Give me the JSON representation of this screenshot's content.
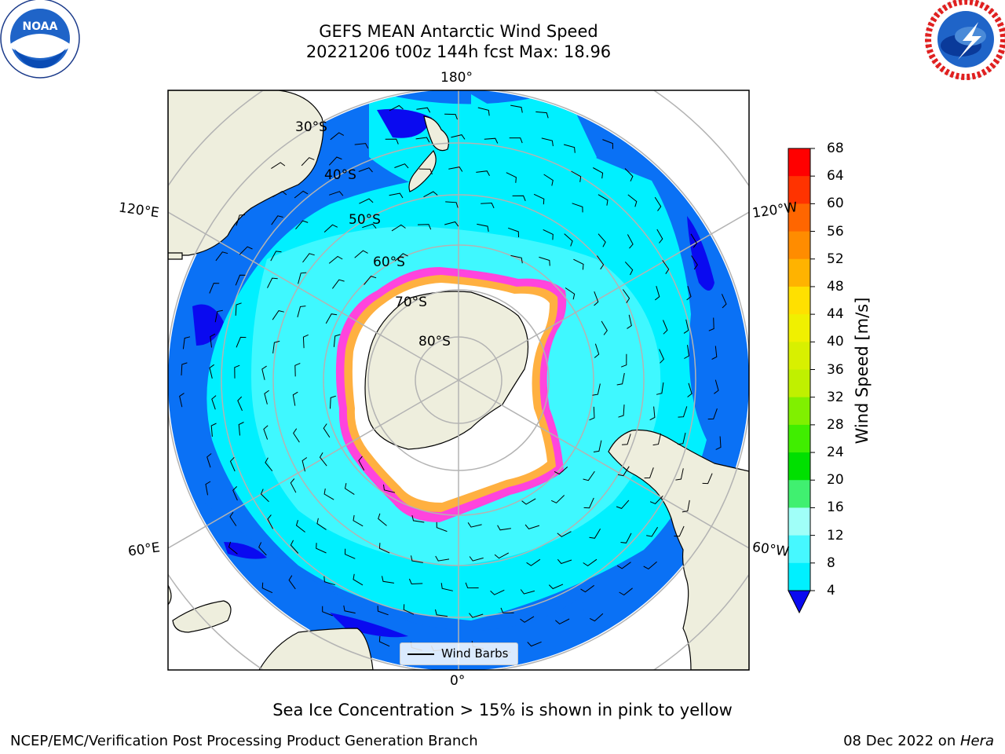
{
  "header": {
    "title": "GEFS MEAN Antarctic Wind Speed",
    "subtitle": "20221206 t00z 144h fcst   Max: 18.96",
    "left_logo": {
      "icon": "noaa-logo-icon",
      "text": "NOAA"
    },
    "right_logo": {
      "icon": "national-weather-service-logo-icon"
    }
  },
  "map": {
    "projection": "south-polar-stereographic",
    "lon_labels": [
      "180°",
      "120°E",
      "120°W",
      "60°E",
      "60°W",
      "0°"
    ],
    "lat_labels": [
      "30°S",
      "40°S",
      "50°S",
      "60°S",
      "70°S",
      "80°S"
    ],
    "legend_label": "Wind Barbs",
    "colors": {
      "land": "#eeeedd",
      "ice": "#ffffff",
      "ice_edge": "#ff44dd",
      "ice_inner": "#ffb040",
      "wind_4_8": "#0a71f5",
      "wind_8_12": "#00f0ff",
      "wind_12_16": "#46f8ff",
      "wind_lt4": "#0a0af0",
      "grid": "#b3b3b3"
    }
  },
  "colorbar": {
    "title": "Wind Speed [m/s]",
    "ticks": [
      "68",
      "64",
      "60",
      "56",
      "52",
      "48",
      "44",
      "40",
      "36",
      "32",
      "28",
      "24",
      "20",
      "16",
      "12",
      "8",
      "4"
    ],
    "colors": [
      "#ff0000",
      "#ff3300",
      "#ff6600",
      "#ff8c00",
      "#ffb300",
      "#ffe000",
      "#f0f000",
      "#d8f000",
      "#c0f000",
      "#80f000",
      "#40ee00",
      "#00e000",
      "#40f070",
      "#a0fff8",
      "#46f8ff",
      "#00f0ff",
      "#0a71f5"
    ],
    "under_color": "#0a0af0"
  },
  "footer": {
    "note": "Sea Ice Concentration > 15% is shown in pink to yellow",
    "left": "NCEP/EMC/Verification Post Processing Product Generation Branch",
    "right_prefix": "08 Dec 2022 on ",
    "right_machine": "Hera"
  }
}
